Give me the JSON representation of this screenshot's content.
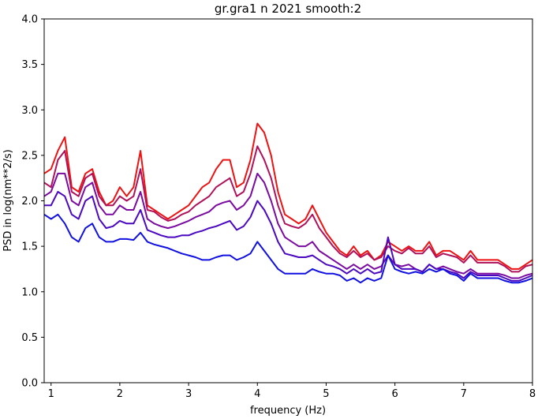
{
  "chart_data": {
    "type": "line",
    "title": "gr.gra1 n 2021 smooth:2",
    "xlabel": "frequency (Hz)",
    "ylabel": "PSD in log(nm**2/s)",
    "xlim": [
      0.9,
      8.0
    ],
    "ylim": [
      0.0,
      4.0
    ],
    "xticks": [
      1,
      2,
      3,
      4,
      5,
      6,
      7,
      8
    ],
    "xtick_labels": [
      "1",
      "2",
      "3",
      "4",
      "5",
      "6",
      "7",
      "8"
    ],
    "yticks": [
      0.0,
      0.5,
      1.0,
      1.5,
      2.0,
      2.5,
      3.0,
      3.5,
      4.0
    ],
    "ytick_labels": [
      "0.0",
      "0.5",
      "1.0",
      "1.5",
      "2.0",
      "2.5",
      "3.0",
      "3.5",
      "4.0"
    ],
    "grid": false,
    "legend": "none",
    "x": [
      0.9,
      1.0,
      1.1,
      1.2,
      1.3,
      1.4,
      1.5,
      1.6,
      1.7,
      1.8,
      1.9,
      2.0,
      2.1,
      2.2,
      2.3,
      2.4,
      2.5,
      2.6,
      2.7,
      2.8,
      2.9,
      3.0,
      3.1,
      3.2,
      3.3,
      3.4,
      3.5,
      3.6,
      3.7,
      3.8,
      3.9,
      4.0,
      4.1,
      4.2,
      4.3,
      4.4,
      4.5,
      4.6,
      4.7,
      4.8,
      4.9,
      5.0,
      5.1,
      5.2,
      5.3,
      5.4,
      5.5,
      5.6,
      5.7,
      5.8,
      5.9,
      6.0,
      6.1,
      6.2,
      6.3,
      6.4,
      6.5,
      6.6,
      6.7,
      6.8,
      6.9,
      7.0,
      7.1,
      7.2,
      7.3,
      7.4,
      7.5,
      7.6,
      7.7,
      7.8,
      7.9,
      8.0
    ],
    "series": [
      {
        "color": "#ee1111",
        "values": [
          2.3,
          2.35,
          2.55,
          2.7,
          2.15,
          2.1,
          2.3,
          2.35,
          2.1,
          1.95,
          2.0,
          2.15,
          2.05,
          2.15,
          2.55,
          1.95,
          1.9,
          1.85,
          1.8,
          1.85,
          1.9,
          1.95,
          2.05,
          2.15,
          2.2,
          2.35,
          2.45,
          2.45,
          2.15,
          2.2,
          2.45,
          2.85,
          2.75,
          2.5,
          2.1,
          1.85,
          1.8,
          1.75,
          1.8,
          1.95,
          1.8,
          1.65,
          1.55,
          1.45,
          1.4,
          1.5,
          1.4,
          1.45,
          1.35,
          1.4,
          1.55,
          1.5,
          1.45,
          1.5,
          1.45,
          1.45,
          1.55,
          1.4,
          1.45,
          1.45,
          1.4,
          1.35,
          1.45,
          1.35,
          1.35,
          1.35,
          1.35,
          1.3,
          1.25,
          1.25,
          1.3,
          1.35
        ]
      },
      {
        "color": "#b0105a",
        "values": [
          2.2,
          2.15,
          2.45,
          2.55,
          2.1,
          2.05,
          2.25,
          2.3,
          2.05,
          1.95,
          1.95,
          2.05,
          2.0,
          2.05,
          2.35,
          1.9,
          1.88,
          1.82,
          1.78,
          1.8,
          1.85,
          1.88,
          1.95,
          2.0,
          2.05,
          2.15,
          2.2,
          2.25,
          2.05,
          2.1,
          2.3,
          2.6,
          2.45,
          2.25,
          1.95,
          1.75,
          1.72,
          1.7,
          1.75,
          1.85,
          1.7,
          1.6,
          1.5,
          1.42,
          1.38,
          1.45,
          1.38,
          1.42,
          1.35,
          1.38,
          1.5,
          1.45,
          1.42,
          1.48,
          1.42,
          1.42,
          1.5,
          1.38,
          1.42,
          1.4,
          1.38,
          1.32,
          1.4,
          1.32,
          1.32,
          1.32,
          1.32,
          1.28,
          1.22,
          1.22,
          1.28,
          1.3
        ]
      },
      {
        "color": "#7a0aa0",
        "values": [
          2.05,
          2.1,
          2.3,
          2.3,
          2.0,
          1.95,
          2.15,
          2.2,
          1.95,
          1.85,
          1.85,
          1.95,
          1.9,
          1.9,
          2.1,
          1.8,
          1.75,
          1.72,
          1.7,
          1.72,
          1.75,
          1.78,
          1.82,
          1.85,
          1.88,
          1.95,
          1.98,
          2.0,
          1.9,
          1.95,
          2.05,
          2.3,
          2.2,
          2.0,
          1.75,
          1.6,
          1.55,
          1.5,
          1.5,
          1.55,
          1.45,
          1.4,
          1.35,
          1.3,
          1.25,
          1.3,
          1.25,
          1.3,
          1.25,
          1.28,
          1.4,
          1.3,
          1.28,
          1.3,
          1.25,
          1.22,
          1.3,
          1.25,
          1.28,
          1.25,
          1.22,
          1.2,
          1.25,
          1.2,
          1.2,
          1.2,
          1.2,
          1.18,
          1.15,
          1.15,
          1.18,
          1.2
        ]
      },
      {
        "color": "#4a08c0",
        "values": [
          1.95,
          1.95,
          2.1,
          2.05,
          1.85,
          1.8,
          2.0,
          2.05,
          1.8,
          1.7,
          1.72,
          1.78,
          1.75,
          1.75,
          1.9,
          1.68,
          1.65,
          1.62,
          1.6,
          1.6,
          1.62,
          1.62,
          1.65,
          1.67,
          1.7,
          1.72,
          1.75,
          1.78,
          1.68,
          1.72,
          1.82,
          2.0,
          1.9,
          1.75,
          1.55,
          1.42,
          1.4,
          1.38,
          1.38,
          1.4,
          1.35,
          1.3,
          1.28,
          1.25,
          1.2,
          1.25,
          1.2,
          1.25,
          1.2,
          1.22,
          1.6,
          1.3,
          1.25,
          1.25,
          1.25,
          1.22,
          1.3,
          1.25,
          1.25,
          1.22,
          1.2,
          1.15,
          1.22,
          1.18,
          1.18,
          1.18,
          1.18,
          1.15,
          1.12,
          1.12,
          1.15,
          1.18
        ]
      },
      {
        "color": "#1010e0",
        "values": [
          1.85,
          1.8,
          1.85,
          1.75,
          1.6,
          1.55,
          1.7,
          1.75,
          1.6,
          1.55,
          1.55,
          1.58,
          1.58,
          1.57,
          1.65,
          1.55,
          1.52,
          1.5,
          1.48,
          1.45,
          1.42,
          1.4,
          1.38,
          1.35,
          1.35,
          1.38,
          1.4,
          1.4,
          1.35,
          1.38,
          1.42,
          1.55,
          1.45,
          1.35,
          1.25,
          1.2,
          1.2,
          1.2,
          1.2,
          1.25,
          1.22,
          1.2,
          1.2,
          1.18,
          1.12,
          1.15,
          1.1,
          1.15,
          1.12,
          1.15,
          1.4,
          1.25,
          1.22,
          1.2,
          1.22,
          1.2,
          1.25,
          1.22,
          1.25,
          1.2,
          1.18,
          1.12,
          1.2,
          1.15,
          1.15,
          1.15,
          1.15,
          1.12,
          1.1,
          1.1,
          1.12,
          1.15
        ]
      }
    ]
  }
}
